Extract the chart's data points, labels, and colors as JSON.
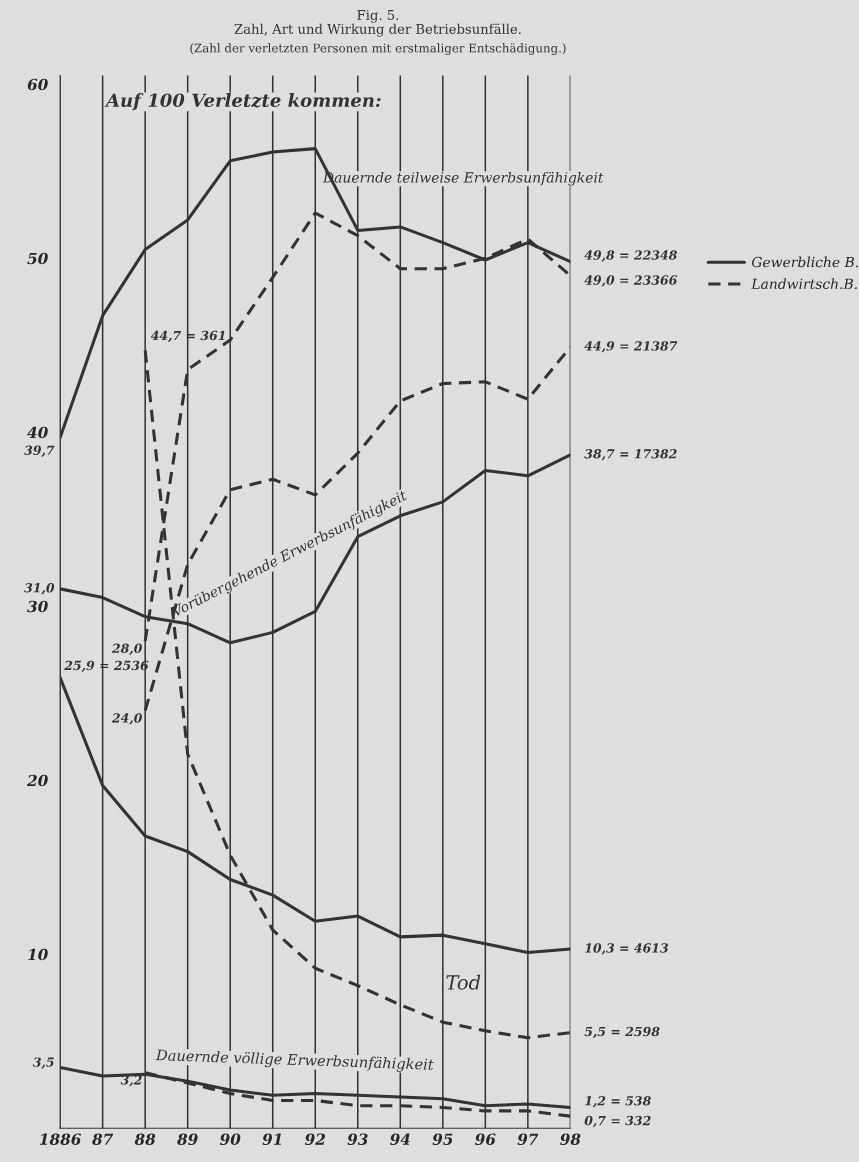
{
  "chart_data": {
    "type": "line",
    "title": "Zahl, Art und Wirkung der Betriebsunfälle.",
    "subtitle": "(Zahl der verletzten Personen mit erstmaliger Entschädigung.)",
    "categories": [
      "1886",
      "87",
      "88",
      "89",
      "90",
      "91",
      "92",
      "93",
      "94",
      "95",
      "96",
      "97",
      "98"
    ],
    "series": [
      {
        "name": "Gewerbliche B.",
        "color": "#333333",
        "line_style": "solid",
        "values": [
          39.7,
          46.7,
          50.5,
          52.2,
          55.6,
          56.1,
          56.3,
          51.6,
          51.8,
          50.9,
          49.9,
          50.9,
          49.8
        ]
      },
      {
        "name": "Landwirtsch.B.",
        "color": "#333333",
        "line_style": "dashed",
        "values": [
          null,
          null,
          28.0,
          43.6,
          45.3,
          48.9,
          52.6,
          51.3,
          49.4,
          49.4,
          50.0,
          51.1,
          49.0
        ]
      },
      {
        "color": "#333333",
        "line_style": "solid",
        "values": [
          31.0,
          30.5,
          29.4,
          29.0,
          27.9,
          28.5,
          29.7,
          34.0,
          35.2,
          36.0,
          37.8,
          37.5,
          38.7
        ]
      },
      {
        "color": "#333333",
        "line_style": "dashed",
        "values": [
          null,
          null,
          24.0,
          32.4,
          36.7,
          37.3,
          36.4,
          38.8,
          41.8,
          42.8,
          42.9,
          41.9,
          44.9
        ]
      },
      {
        "color": "#333333",
        "line_style": "solid",
        "values": [
          25.9,
          19.7,
          16.8,
          15.9,
          14.3,
          13.4,
          11.9,
          12.2,
          11.0,
          11.1,
          10.6,
          10.1,
          10.3
        ]
      },
      {
        "color": "#333333",
        "line_style": "dashed",
        "values": [
          null,
          null,
          44.7,
          21.5,
          15.7,
          11.4,
          9.2,
          8.2,
          7.1,
          6.1,
          5.6,
          5.2,
          5.5
        ]
      },
      {
        "color": "#333333",
        "line_style": "solid",
        "values": [
          3.5,
          3.0,
          3.1,
          2.7,
          2.2,
          1.9,
          2.0,
          1.9,
          1.8,
          1.7,
          1.3,
          1.4,
          1.2
        ]
      },
      {
        "color": "#333333",
        "line_style": "dashed",
        "values": [
          null,
          null,
          3.2,
          2.6,
          2.0,
          1.6,
          1.6,
          1.3,
          1.3,
          1.2,
          1.0,
          1.0,
          0.7
        ]
      }
    ],
    "ylim": [
      0,
      60.5
    ],
    "yticks": [
      10,
      20,
      30,
      40,
      50,
      60
    ],
    "grid": "x",
    "legend": "right",
    "annotations": [
      "Fig. 5.",
      "Auf 100 Verletzte kommen:",
      "Dauernde teilweise Erwerbsunfähigkeit",
      "Vorübergehende Erwerbsunfähigkeit",
      "Tod",
      "Dauernde völlige Erwerbsunfähigkeit",
      {
        "text": "39,7",
        "x": "1886",
        "y": 39.7
      },
      {
        "text": "31,0",
        "x": "1886",
        "y": 31.0
      },
      {
        "text": "25,9 = 2536",
        "x": "1886",
        "y": 25.9
      },
      {
        "text": "3,5",
        "x": "1886",
        "y": 3.5
      },
      {
        "text": "44,7 = 361",
        "x": "88",
        "y": 44.7
      },
      {
        "text": "28,0",
        "x": "88",
        "y": 28.0
      },
      {
        "text": "24,0",
        "x": "88",
        "y": 24.0
      },
      {
        "text": "3,2",
        "x": "88",
        "y": 3.2
      },
      {
        "text": "49,8 = 22348",
        "x": "98",
        "y": 49.8
      },
      {
        "text": "49,0 = 23366",
        "x": "98",
        "y": 49.0
      },
      {
        "text": "44,9 = 21387",
        "x": "98",
        "y": 44.9
      },
      {
        "text": "38,7 = 17382",
        "x": "98",
        "y": 38.7
      },
      {
        "text": "10,3 = 4613",
        "x": "98",
        "y": 10.3
      },
      {
        "text": "5,5 = 2598",
        "x": "98",
        "y": 5.5
      },
      {
        "text": "1,2 = 538",
        "x": "98",
        "y": 1.2
      },
      {
        "text": "0,7 = 332",
        "x": "98",
        "y": 0.7
      }
    ]
  }
}
